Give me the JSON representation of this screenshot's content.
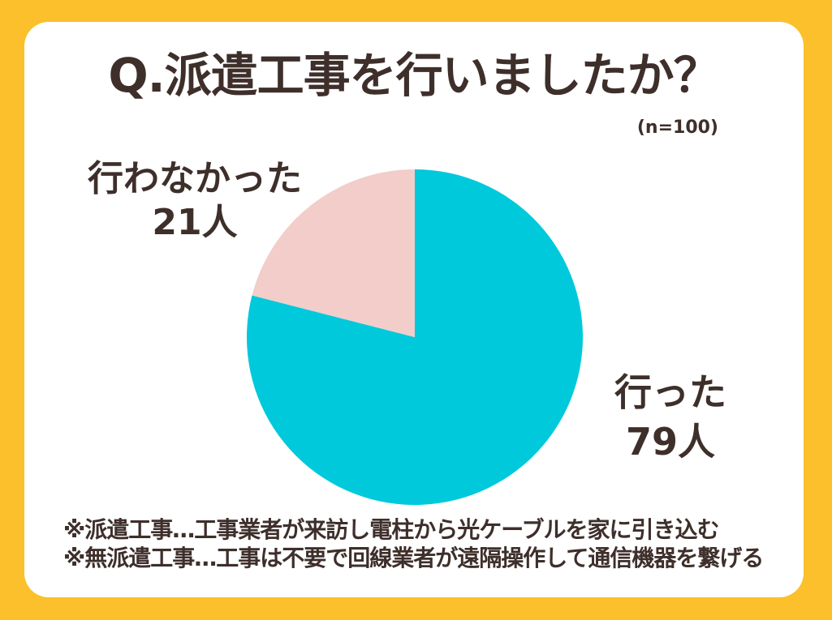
{
  "frame": {
    "background_color": "#FBC02B",
    "panel_color": "#FFFFFF",
    "text_color": "#3E2F2B"
  },
  "title": "Q.派遣工事を行いましたか？",
  "sample_size_label": "(n=100)",
  "chart_data": {
    "type": "pie",
    "title": "Q.派遣工事を行いましたか？",
    "sample_size": 100,
    "categories": [
      "行った",
      "行わなかった"
    ],
    "values": [
      79,
      21
    ],
    "unit": "人",
    "colors": [
      "#00C9DC",
      "#F2CDCA"
    ],
    "start_angle_deg": 0,
    "direction": "clockwise",
    "legend_position": "none",
    "labels": [
      {
        "name": "行った",
        "value_label": "79人",
        "position": "right"
      },
      {
        "name": "行わなかった",
        "value_label": "21人",
        "position": "top-left"
      }
    ]
  },
  "footnotes": [
    "※派遣工事…工事業者が来訪し電柱から光ケーブルを家に引き込む",
    "※無派遣工事…工事は不要で回線業者が遠隔操作して通信機器を繋げる"
  ]
}
